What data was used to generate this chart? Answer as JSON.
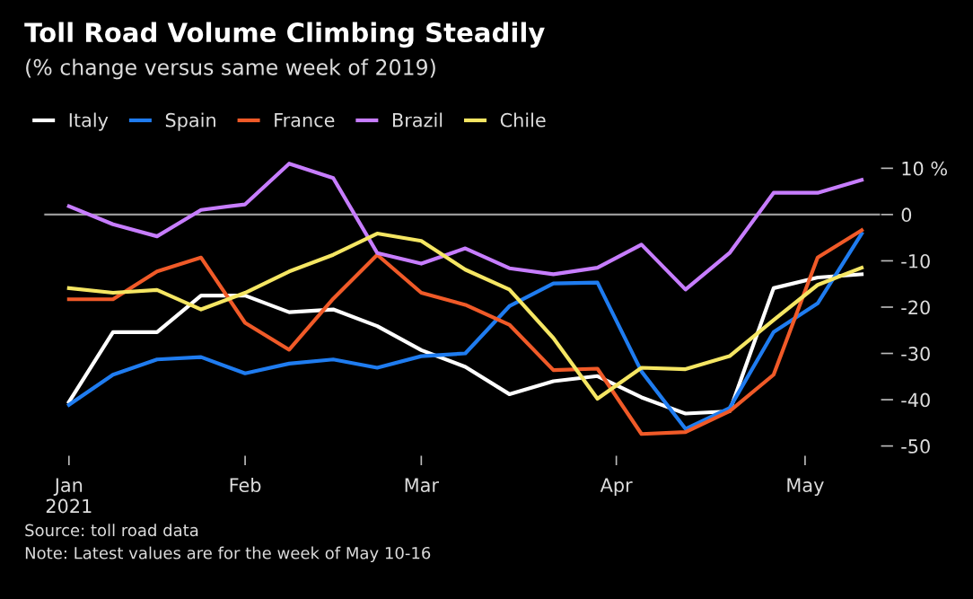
{
  "chart_data": {
    "type": "line",
    "title": "Toll Road Volume Climbing Steadily",
    "subtitle": "(% change versus same week of 2019)",
    "x": [
      "2021-01-04",
      "2021-01-11",
      "2021-01-18",
      "2021-01-25",
      "2021-02-01",
      "2021-02-08",
      "2021-02-15",
      "2021-02-22",
      "2021-03-01",
      "2021-03-08",
      "2021-03-15",
      "2021-03-22",
      "2021-03-29",
      "2021-04-05",
      "2021-04-12",
      "2021-04-19",
      "2021-04-26",
      "2021-05-03",
      "2021-05-10"
    ],
    "series": [
      {
        "name": "Italy",
        "color": "#ffffff",
        "values": [
          -40.5,
          -25.4,
          -25.4,
          -17.5,
          -17.5,
          -21.1,
          -20.5,
          -24.1,
          -29.3,
          -32.9,
          -38.8,
          -36.0,
          -34.9,
          -39.5,
          -43.0,
          -42.5,
          -15.9,
          -13.6,
          -12.9
        ]
      },
      {
        "name": "Spain",
        "color": "#1f7cf0",
        "values": [
          -41.1,
          -34.6,
          -31.3,
          -30.8,
          -34.3,
          -32.2,
          -31.3,
          -33.1,
          -30.6,
          -30.0,
          -19.8,
          -14.9,
          -14.7,
          -33.9,
          -46.3,
          -41.8,
          -25.4,
          -19.2,
          -4.1
        ]
      },
      {
        "name": "France",
        "color": "#f05a28",
        "values": [
          -18.3,
          -18.3,
          -12.3,
          -9.3,
          -23.4,
          -29.2,
          -18.2,
          -8.7,
          -16.9,
          -19.5,
          -23.8,
          -33.6,
          -33.3,
          -47.4,
          -47.0,
          -42.5,
          -34.6,
          -9.3,
          -3.4
        ]
      },
      {
        "name": "Brazil",
        "color": "#c77dff",
        "values": [
          1.8,
          -2.1,
          -4.7,
          1.0,
          2.2,
          11.0,
          7.9,
          -8.3,
          -10.6,
          -7.3,
          -11.6,
          -12.9,
          -11.5,
          -6.5,
          -16.2,
          -8.3,
          4.7,
          4.7,
          7.5
        ]
      },
      {
        "name": "Chile",
        "color": "#f5e663",
        "values": [
          -15.9,
          -16.9,
          -16.3,
          -20.5,
          -16.9,
          -12.3,
          -8.7,
          -4.1,
          -5.7,
          -11.9,
          -16.2,
          -26.7,
          -39.8,
          -33.1,
          -33.4,
          -30.6,
          -22.8,
          -15.2,
          -11.5
        ]
      }
    ],
    "xlim": [
      "2020-12-31",
      "2021-05-13"
    ],
    "xticks": [
      {
        "value": "2021-01-04",
        "label": "Jan\n2021"
      },
      {
        "value": "2021-02-01",
        "label": "Feb"
      },
      {
        "value": "2021-03-01",
        "label": "Mar"
      },
      {
        "value": "2021-04-01",
        "label": "Apr"
      },
      {
        "value": "2021-05-01",
        "label": "May"
      }
    ],
    "ylim": [
      -52,
      14
    ],
    "yticks": [
      {
        "value": 10,
        "label": "10 %"
      },
      0,
      -10,
      -20,
      -30,
      -40,
      -50
    ],
    "ref_lines": [
      {
        "axis": "y",
        "value": 0,
        "color": "#999999"
      }
    ],
    "legend": "top left",
    "grid": false,
    "marker": "none",
    "line_style": "solid",
    "annotations": [
      "Source: toll road data",
      "Note: Latest values are for the week of May 10-16"
    ]
  }
}
